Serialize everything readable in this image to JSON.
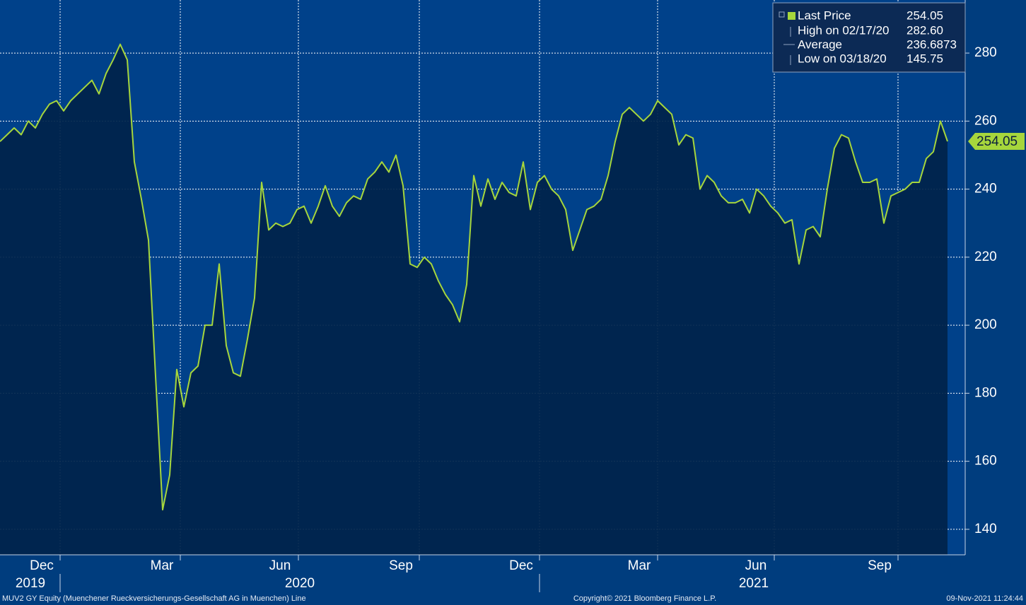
{
  "chart_data": {
    "type": "line",
    "footer_left": "MUV2 GY Equity (Muenchener Rueckversicherungs-Gesellschaft AG in Muenchen) Line",
    "footer_center": "Copyright© 2021 Bloomberg Finance L.P.",
    "footer_right": "09-Nov-2021 11:24:44",
    "series": [
      {
        "name": "Last Price",
        "color": "#a6d63c",
        "values": [
          254,
          256,
          258,
          256,
          260,
          258,
          262,
          265,
          266,
          263,
          266,
          268,
          270,
          272,
          268,
          274,
          278,
          282.6,
          278,
          248,
          237,
          225,
          185,
          145.75,
          156,
          187,
          176,
          186,
          188,
          200,
          200,
          218,
          194,
          186,
          185,
          196,
          208,
          242,
          228,
          230,
          229,
          230,
          234,
          235,
          230,
          235,
          241,
          235,
          232,
          236,
          238,
          237,
          243,
          245,
          248,
          245,
          250,
          241,
          218,
          217,
          220,
          218,
          213,
          209,
          206,
          201,
          212,
          244,
          235,
          243,
          237,
          242,
          239,
          238,
          248,
          234,
          242,
          244,
          240,
          238,
          234,
          222,
          228,
          234,
          235,
          237,
          244,
          254,
          262,
          264,
          262,
          260,
          262,
          266,
          264,
          262,
          253,
          256,
          255,
          240,
          244,
          242,
          238,
          236,
          236,
          237,
          233,
          240,
          238,
          235,
          233,
          230,
          231,
          218,
          228,
          229,
          226,
          240,
          252,
          256,
          255,
          248,
          242,
          242,
          243,
          230,
          238,
          239,
          240,
          242,
          242,
          249,
          251,
          260,
          254.05
        ]
      }
    ],
    "stats": [
      {
        "label": "Last Price",
        "value": 254.05
      },
      {
        "label": "High on 02/17/20",
        "value": 282.6,
        "value_label": "282.60"
      },
      {
        "label": "Average",
        "value": 236.6873
      },
      {
        "label": "Low on 03/18/20",
        "value": 145.75
      }
    ],
    "xlim": [
      0,
      136.5
    ],
    "xticks": [
      {
        "value": 8.5,
        "label": "Dec"
      },
      {
        "value": 25.5,
        "label": "Mar"
      },
      {
        "value": 42.2,
        "label": "Jun"
      },
      {
        "value": 59.3,
        "label": "Sep"
      },
      {
        "value": 76.3,
        "label": "Dec"
      },
      {
        "value": 93,
        "label": "Mar"
      },
      {
        "value": 109.5,
        "label": "Jun"
      },
      {
        "value": 127,
        "label": "Sep"
      }
    ],
    "years": [
      "2019",
      "2020",
      "2021"
    ],
    "ylim": [
      132.5,
      295.6
    ],
    "yticks": [
      140,
      160,
      180,
      200,
      220,
      240,
      260,
      280
    ],
    "grid": true
  }
}
